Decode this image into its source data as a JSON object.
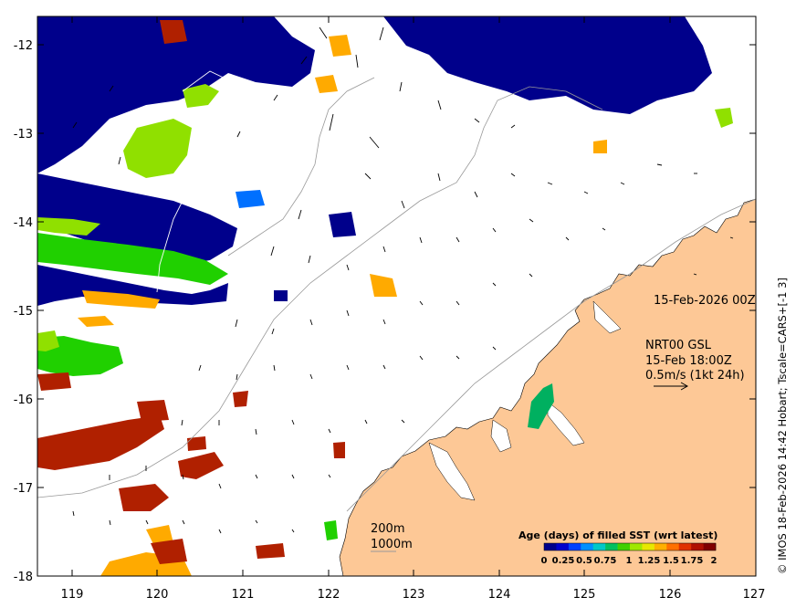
{
  "map": {
    "x_ticks": [
      "119",
      "120",
      "121",
      "122",
      "123",
      "124",
      "125",
      "126",
      "127"
    ],
    "y_ticks": [
      "-12",
      "-13",
      "-14",
      "-15",
      "-16",
      "-17",
      "-18"
    ]
  },
  "annotations": {
    "date_label": "15-Feb-2026 00Z",
    "current_source": "NRT00 GSL",
    "current_time": "15-Feb 18:00Z",
    "current_scale": "0.5m/s (1kt 24h)",
    "contour_200": "200m",
    "contour_1000": "1000m"
  },
  "colorbar": {
    "title": "Age (days) of filled SST (wrt latest)",
    "labels": [
      "0",
      "0.25",
      "0.5",
      "0.75",
      "1",
      "1.25",
      "1.5",
      "1.75",
      "2"
    ],
    "colors": [
      "#00008b",
      "#0000cd",
      "#0040ff",
      "#0090ff",
      "#00c8c8",
      "#00c060",
      "#40d000",
      "#a0e800",
      "#e8e800",
      "#ffb000",
      "#ff7000",
      "#e03000",
      "#b01000",
      "#800000"
    ]
  },
  "credit": "© IMOS 18-Feb-2026 14:42 Hobart; Tscale=CARS+[-1 3]",
  "palette": {
    "land": "#fdc896",
    "navy": "#00008b",
    "green_bright": "#20d000",
    "green_light": "#90e000",
    "orange": "#ffaa00",
    "darkred": "#b02000"
  }
}
